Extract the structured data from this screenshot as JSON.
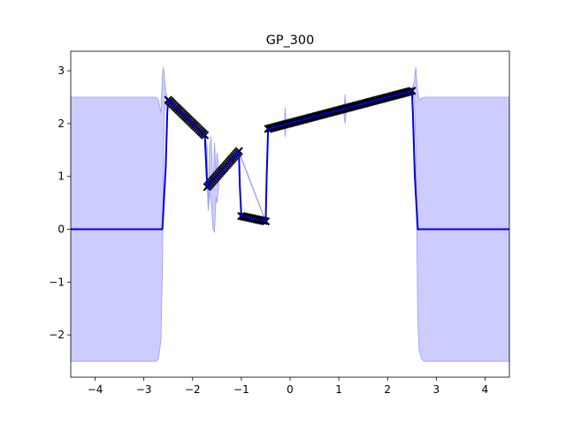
{
  "chart_data": {
    "type": "line",
    "title": "GP_300",
    "xlabel": "",
    "ylabel": "",
    "xlim": [
      -4.5,
      4.5
    ],
    "ylim": [
      -2.8,
      3.37
    ],
    "xticks": [
      -4,
      -3,
      -2,
      -1,
      0,
      1,
      2,
      3,
      4
    ],
    "xtick_labels": [
      "−4",
      "−3",
      "−2",
      "−1",
      "0",
      "1",
      "2",
      "3",
      "4"
    ],
    "yticks": [
      -2,
      -1,
      0,
      1,
      2,
      3
    ],
    "ytick_labels": [
      "−2",
      "−1",
      "0",
      "1",
      "2",
      "3"
    ],
    "grid": false,
    "legend": "none",
    "colors": {
      "mean_line": "#0000dd",
      "band_fill": "#ccccff",
      "band_edge": "#9a9aff",
      "markers": "#000000"
    },
    "mean": {
      "x": [
        -4.5,
        -2.62,
        -2.55,
        -2.52,
        -2.5,
        -1.75,
        -1.72,
        -1.7,
        -1.05,
        -1.03,
        -1.0,
        -0.5,
        -0.48,
        -0.45,
        2.5,
        2.52,
        2.56,
        2.62,
        4.5
      ],
      "y": [
        0.0,
        0.0,
        1.2,
        2.2,
        2.45,
        1.78,
        1.2,
        0.78,
        1.48,
        0.8,
        0.25,
        0.15,
        1.0,
        1.9,
        2.62,
        2.2,
        1.0,
        0.0,
        0.0
      ]
    },
    "confidence_band": {
      "x": [
        -4.5,
        -2.75,
        -2.7,
        -2.65,
        -2.62,
        -2.6,
        -2.58,
        -2.55,
        -2.52,
        -2.5,
        -2.4,
        -2.0,
        -1.75,
        -1.7,
        -1.68,
        -1.65,
        -1.62,
        -1.58,
        -1.55,
        -1.52,
        -1.5,
        -1.45,
        -1.3,
        -1.05,
        -0.5,
        -0.45,
        -0.4,
        -0.2,
        -0.12,
        -0.1,
        -0.08,
        0.0,
        1.1,
        1.13,
        1.15,
        1.17,
        1.2,
        2.5,
        2.55,
        2.58,
        2.6,
        2.62,
        2.65,
        2.7,
        2.75,
        4.5
      ],
      "upper": [
        2.5,
        2.5,
        2.45,
        2.2,
        2.9,
        3.07,
        2.9,
        2.6,
        2.5,
        2.45,
        2.32,
        1.98,
        1.8,
        1.55,
        0.4,
        1.55,
        1.75,
        0.75,
        1.65,
        1.0,
        1.45,
        1.02,
        1.12,
        1.48,
        0.16,
        1.92,
        1.92,
        1.98,
        1.96,
        2.3,
        1.98,
        2.0,
        2.25,
        2.55,
        2.25,
        2.28,
        2.3,
        2.62,
        2.8,
        3.07,
        2.8,
        2.6,
        2.45,
        2.48,
        2.5,
        2.5
      ],
      "lower": [
        -2.5,
        -2.5,
        -2.45,
        -2.1,
        -0.8,
        1.0,
        2.2,
        2.4,
        2.45,
        2.45,
        2.3,
        1.96,
        1.78,
        0.85,
        0.35,
        0.7,
        0.55,
        0.0,
        -0.05,
        0.6,
        0.5,
        0.95,
        1.1,
        1.45,
        0.14,
        1.85,
        1.88,
        1.94,
        1.95,
        1.75,
        1.96,
        1.98,
        2.23,
        2.0,
        2.2,
        2.26,
        2.28,
        2.6,
        2.45,
        1.5,
        0.0,
        -1.7,
        -2.3,
        -2.45,
        -2.5,
        -2.5
      ]
    },
    "observations": [
      {
        "x_range": [
          -2.5,
          -1.75
        ],
        "y_range": [
          2.45,
          1.78
        ],
        "count": 26
      },
      {
        "x_range": [
          -1.7,
          -1.05
        ],
        "y_range": [
          0.8,
          1.48
        ],
        "count": 24
      },
      {
        "x_range": [
          -1.0,
          -0.5
        ],
        "y_range": [
          0.25,
          0.15
        ],
        "count": 14
      },
      {
        "x_range": [
          -0.45,
          2.5
        ],
        "y_range": [
          1.9,
          2.62
        ],
        "count": 80
      }
    ]
  }
}
